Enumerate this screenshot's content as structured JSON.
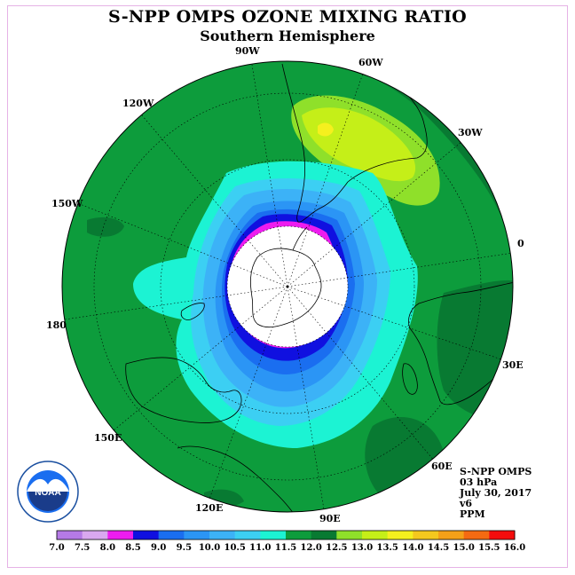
{
  "title": "S-NPP OMPS OZONE MIXING RATIO",
  "subtitle": "Southern Hemisphere",
  "longitude_labels": {
    "w90": "90W",
    "w60": "60W",
    "w30": "30W",
    "e0": "0",
    "e30": "30E",
    "e60": "60E",
    "e90": "90E",
    "e120": "120E",
    "e150": "150E",
    "d180": "180",
    "w150": "150W",
    "w120": "120W"
  },
  "info": {
    "instrument": "S-NPP OMPS",
    "level": "03 hPa",
    "date": "July 30, 2017",
    "version": "v6",
    "units": "PPM"
  },
  "colorbar": {
    "ticks": [
      "7.0",
      "7.5",
      "8.0",
      "8.5",
      "9.0",
      "9.5",
      "10.0",
      "10.5",
      "11.0",
      "11.5",
      "12.0",
      "12.5",
      "13.0",
      "13.5",
      "14.0",
      "14.5",
      "15.0",
      "15.5",
      "16.0"
    ],
    "colors": [
      "#b57ae6",
      "#d9a8ef",
      "#ee1cef",
      "#1010e0",
      "#1a6ef0",
      "#2b95f5",
      "#3cb2f7",
      "#3ccff3",
      "#1cf3d3",
      "#0d9c3c",
      "#087a32",
      "#8fe02a",
      "#c5ef18",
      "#f5f01e",
      "#f5c81e",
      "#f5a018",
      "#f56a12",
      "#f50c0c",
      "#8a4a2a"
    ]
  },
  "logo": {
    "name": "NOAA"
  }
}
